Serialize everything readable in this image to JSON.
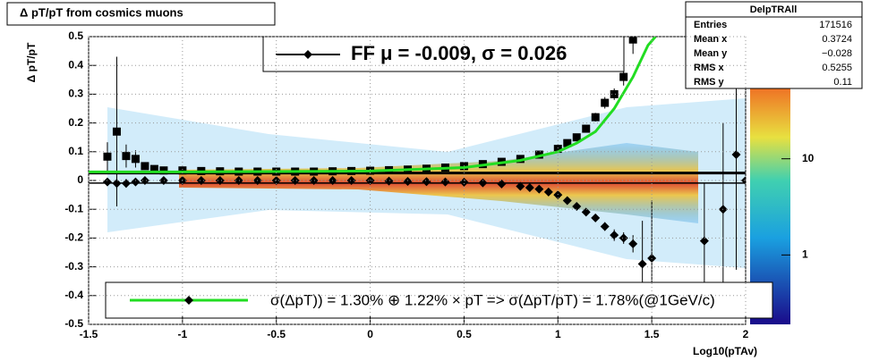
{
  "chart_data": {
    "type": "scatter",
    "title": "Δ pT/pT from cosmics muons",
    "x_label": "Log10(pTAv)",
    "y_label": "Δ pT/pT",
    "xlim": [
      -1.5,
      2
    ],
    "xticks": [
      -1.5,
      -1,
      -0.5,
      0,
      0.5,
      1,
      1.5,
      2
    ],
    "ylim": [
      -0.5,
      0.5
    ],
    "yticks": [
      -0.5,
      -0.4,
      -0.3,
      -0.2,
      -0.1,
      0,
      0.1,
      0.2,
      0.3,
      0.4,
      0.5
    ],
    "grid": true,
    "zlim": [
      0.19,
      186
    ],
    "zscale": "log",
    "zticks": [
      1,
      10
    ],
    "reference_lines": [
      0.026,
      -0.009
    ],
    "series": [
      {
        "marker": "square",
        "color": "#000000",
        "x": [
          -1.4,
          -1.35,
          -1.3,
          -1.25,
          -1.2,
          -1.15,
          -1.1,
          -1.0,
          -0.9,
          -0.8,
          -0.7,
          -0.6,
          -0.5,
          -0.4,
          -0.3,
          -0.2,
          -0.1,
          0,
          0.1,
          0.2,
          0.3,
          0.4,
          0.5,
          0.6,
          0.7,
          0.8,
          0.9,
          1.0,
          1.05,
          1.1,
          1.15,
          1.2,
          1.25,
          1.3,
          1.35,
          1.4
        ],
        "values": [
          0.083,
          0.17,
          0.085,
          0.075,
          0.05,
          0.04,
          0.035,
          0.035,
          0.033,
          0.032,
          0.031,
          0.031,
          0.031,
          0.031,
          0.031,
          0.032,
          0.033,
          0.034,
          0.036,
          0.038,
          0.041,
          0.045,
          0.05,
          0.057,
          0.065,
          0.075,
          0.09,
          0.11,
          0.13,
          0.15,
          0.18,
          0.22,
          0.27,
          0.3,
          0.36,
          0.49
        ],
        "errors": [
          0.05,
          0.26,
          0.04,
          0.03,
          0.01,
          0.005,
          0.004,
          0.003,
          0.003,
          0.002,
          0.002,
          0.002,
          0.002,
          0.002,
          0.002,
          0.002,
          0.002,
          0.002,
          0.002,
          0.002,
          0.002,
          0.002,
          0.003,
          0.003,
          0.003,
          0.004,
          0.005,
          0.006,
          0.008,
          0.01,
          0.01,
          0.015,
          0.02,
          0.02,
          0.03,
          0.05
        ]
      },
      {
        "name": "FF μ = -0.009, σ =   0.026",
        "marker": "diamond",
        "color": "#000000",
        "legend": "top",
        "x": [
          -1.4,
          -1.35,
          -1.3,
          -1.25,
          -1.2,
          -1.1,
          -1.0,
          -0.9,
          -0.8,
          -0.7,
          -0.6,
          -0.5,
          -0.4,
          -0.3,
          -0.2,
          -0.1,
          0,
          0.1,
          0.2,
          0.3,
          0.4,
          0.5,
          0.6,
          0.7,
          0.8,
          0.85,
          0.9,
          0.95,
          1.0,
          1.05,
          1.1,
          1.15,
          1.2,
          1.25,
          1.3,
          1.35,
          1.4,
          1.45,
          1.5,
          1.78,
          1.88,
          1.95,
          2.0
        ],
        "values": [
          -0.005,
          -0.01,
          -0.01,
          -0.005,
          0,
          0,
          0,
          0,
          0,
          0,
          0,
          0,
          0,
          0,
          0,
          0,
          0,
          -0.002,
          -0.003,
          -0.004,
          -0.005,
          -0.006,
          -0.008,
          -0.012,
          -0.02,
          -0.025,
          -0.03,
          -0.04,
          -0.05,
          -0.07,
          -0.09,
          -0.11,
          -0.13,
          -0.16,
          -0.19,
          -0.2,
          -0.22,
          -0.29,
          -0.27,
          -0.21,
          -0.1,
          0.09,
          0
        ],
        "errors": [
          0.005,
          0.02,
          0.015,
          0.01,
          0.002,
          0.002,
          0.002,
          0.002,
          0.002,
          0.002,
          0.002,
          0.002,
          0.002,
          0.002,
          0.002,
          0.002,
          0.002,
          0.002,
          0.002,
          0.002,
          0.002,
          0.002,
          0.002,
          0.002,
          0.002,
          0.003,
          0.004,
          0.004,
          0.005,
          0.006,
          0.008,
          0.01,
          0.01,
          0.015,
          0.02,
          0.02,
          0.03,
          0.15,
          0.2,
          0.2,
          0.3,
          0.4,
          0.1
        ]
      },
      {
        "name": "σ(ΔpT)) =  1.30% ⊕  1.22% × pT => σ(ΔpT/pT) =  1.78%(@1GeV/c)",
        "marker": "line",
        "color": "#22dd22",
        "legend": "bottom",
        "x": [
          -1.5,
          -1,
          -0.5,
          0,
          0.5,
          0.8,
          1.0,
          1.1,
          1.2,
          1.3,
          1.4,
          1.48,
          1.52
        ],
        "values": [
          0.03,
          0.03,
          0.031,
          0.033,
          0.045,
          0.07,
          0.1,
          0.13,
          0.17,
          0.25,
          0.36,
          0.47,
          0.5
        ]
      }
    ],
    "stats": {
      "title": "DelpTRAll",
      "rows": [
        {
          "label": "Entries",
          "value": "171516"
        },
        {
          "label": "Mean x",
          "value": "0.3724"
        },
        {
          "label": "Mean y",
          "value": "−0.028"
        },
        {
          "label": "RMS x",
          "value": "0.5255"
        },
        {
          "label": "RMS y",
          "value": "0.11"
        }
      ]
    }
  }
}
